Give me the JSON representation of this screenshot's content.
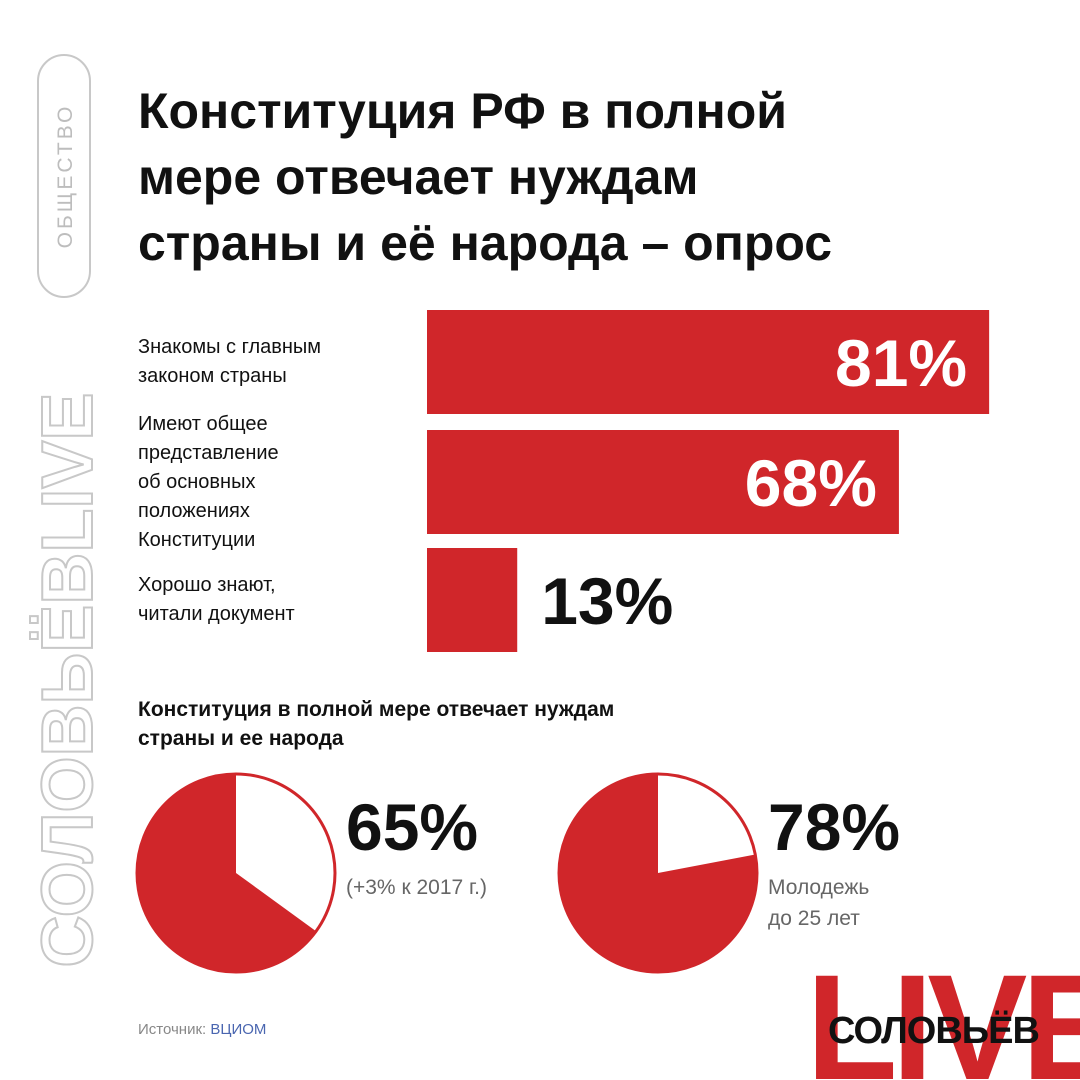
{
  "tag": "ОБЩЕСТВО",
  "brand_vertical": "СОЛОВЬЁВLIVE",
  "chart_data": [
    {
      "type": "bar",
      "title": "Конституция РФ в полной\nмере отвечает нуждам\nстраны и её народа – опрос",
      "categories": [
        "Знакомы с главным\nзаконом страны",
        "Имеют общее\nпредставление\nоб основных\nположениях\nКонституции",
        "Хорошо знают,\nчитали документ"
      ],
      "values": [
        81,
        68,
        13
      ],
      "value_labels": [
        "81%",
        "68%",
        "13%"
      ],
      "color": "#d0262a",
      "xlim": [
        0,
        100
      ]
    },
    {
      "type": "pie",
      "title": "Конституция в полной мере отвечает нуждам\nстраны и ее народа",
      "values": [
        65,
        78
      ],
      "value_labels": [
        "65%",
        "78%"
      ],
      "captions": [
        "(+3% к 2017 г.)",
        "Молодежь\nдо 25 лет"
      ],
      "color": "#d0262a"
    }
  ],
  "source": {
    "label": "Источник:",
    "name": "ВЦИОМ"
  },
  "logo": {
    "word": "LIVE",
    "name": "СОЛОВЬЁВ"
  }
}
